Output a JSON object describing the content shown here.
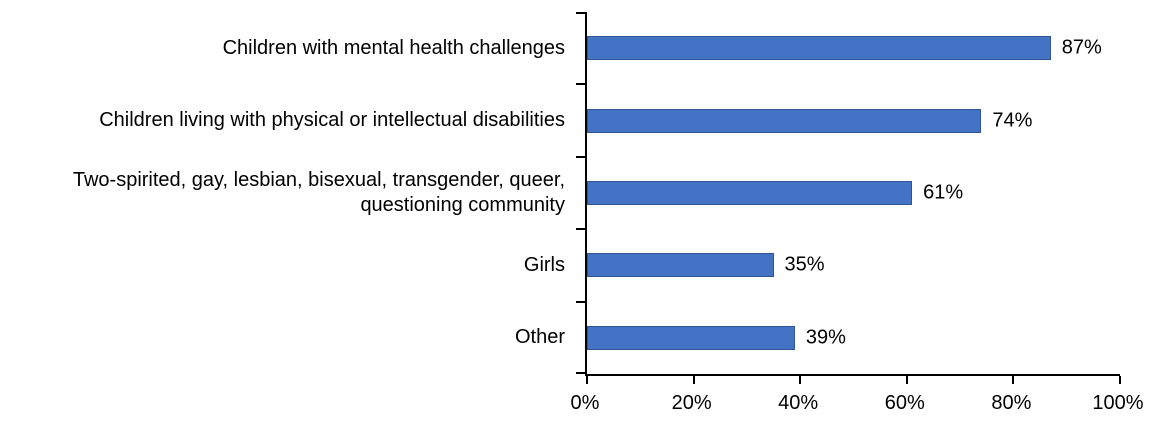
{
  "chart_data": {
    "type": "bar",
    "orientation": "horizontal",
    "title": "",
    "xlabel": "",
    "ylabel": "",
    "categories": [
      "Children with mental health challenges",
      "Children living with physical or intellectual disabilities",
      "Two-spirited, gay, lesbian, bisexual, transgender, queer, questioning community",
      "Girls",
      "Other"
    ],
    "values": [
      87,
      74,
      61,
      35,
      39
    ],
    "data_labels": [
      "87%",
      "74%",
      "61%",
      "35%",
      "39%"
    ],
    "x_ticks": [
      "0%",
      "20%",
      "40%",
      "60%",
      "80%",
      "100%"
    ],
    "xlim": [
      0,
      100
    ],
    "grid": "off",
    "legend": "none",
    "colors": {
      "bar_fill": "#4472C4",
      "bar_border": "#2F5597",
      "axis": "#000000",
      "text": "#000000",
      "background": "#FFFFFF"
    }
  }
}
